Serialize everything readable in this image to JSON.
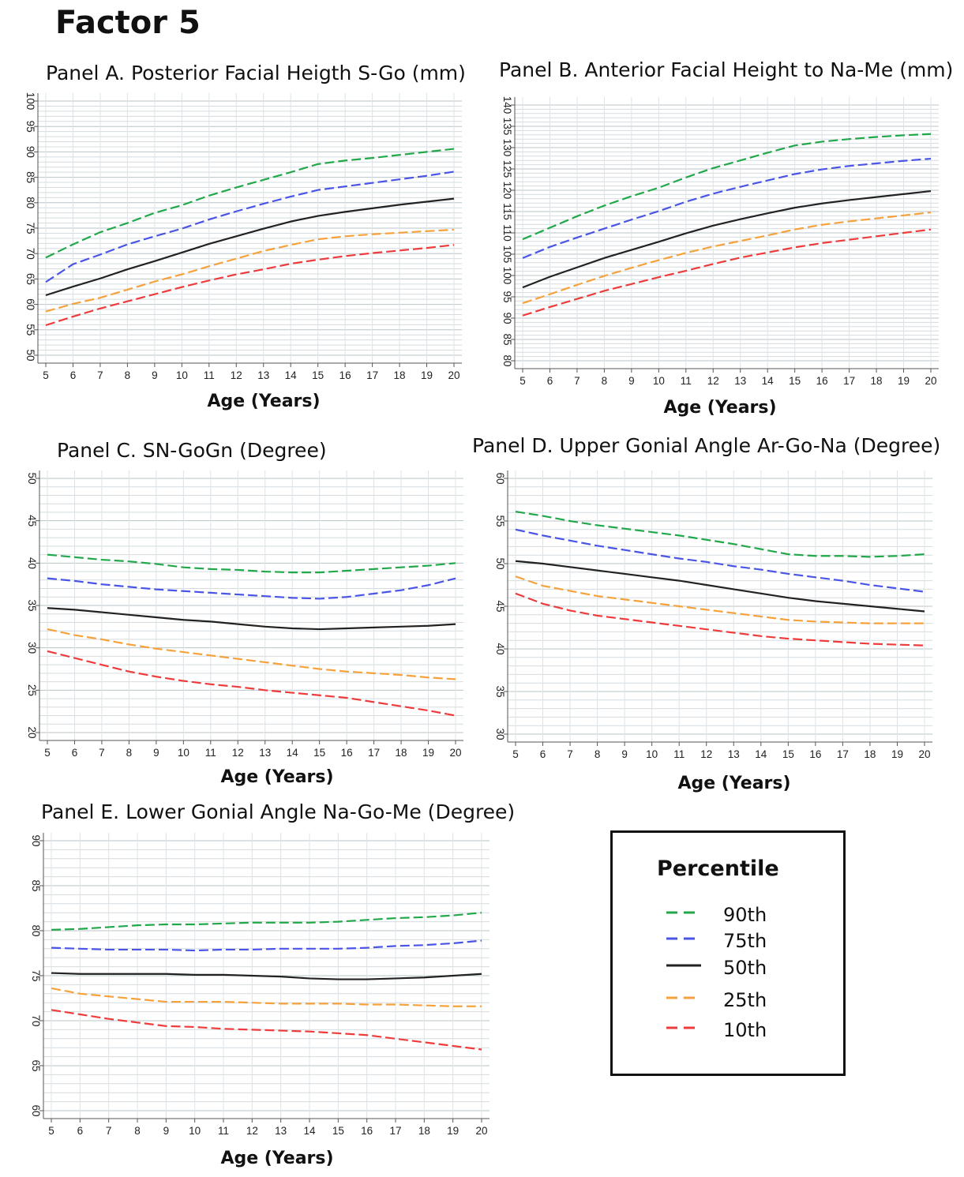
{
  "figure_title": "Factor 5",
  "legend": {
    "title": "Percentile",
    "items": [
      {
        "label": "90th",
        "color": "#22a84a",
        "dash": true
      },
      {
        "label": "75th",
        "color": "#4a55e6",
        "dash": true
      },
      {
        "label": "50th",
        "color": "#222222",
        "dash": false
      },
      {
        "label": "25th",
        "color": "#f5a23c",
        "dash": true
      },
      {
        "label": "10th",
        "color": "#ee3b3b",
        "dash": true
      }
    ]
  },
  "chart_data": [
    {
      "id": "A",
      "type": "line",
      "title": "Panel A. Posterior Facial Heigth S-Go (mm)",
      "xlabel": "Age (Years)",
      "ylabel": "",
      "x": [
        5,
        6,
        7,
        8,
        9,
        10,
        11,
        12,
        13,
        14,
        15,
        16,
        17,
        18,
        19,
        20
      ],
      "xlim": [
        5,
        20
      ],
      "ylim": [
        50,
        100
      ],
      "ytick_step": 5,
      "grid": true,
      "series": [
        {
          "color": "#22a84a",
          "values": [
            69.2,
            71.8,
            74.2,
            76.0,
            78.0,
            79.5,
            81.4,
            83.0,
            84.5,
            86.0,
            87.6,
            88.3,
            88.8,
            89.4,
            90.0,
            90.6
          ]
        },
        {
          "color": "#4a55e6",
          "values": [
            64.4,
            67.9,
            69.8,
            71.8,
            73.4,
            74.9,
            76.7,
            78.3,
            79.8,
            81.2,
            82.5,
            83.2,
            83.9,
            84.6,
            85.3,
            86.1
          ]
        },
        {
          "color": "#222222",
          "values": [
            61.8,
            63.5,
            65.1,
            66.9,
            68.5,
            70.2,
            71.9,
            73.4,
            74.9,
            76.3,
            77.4,
            78.2,
            78.9,
            79.6,
            80.2,
            80.8
          ]
        },
        {
          "color": "#f5a23c",
          "values": [
            58.6,
            60.1,
            61.3,
            62.9,
            64.5,
            65.9,
            67.5,
            69.0,
            70.5,
            71.7,
            72.8,
            73.4,
            73.8,
            74.1,
            74.4,
            74.7
          ]
        },
        {
          "color": "#ee3b3b",
          "values": [
            55.9,
            57.6,
            59.2,
            60.6,
            62.0,
            63.4,
            64.7,
            65.9,
            66.9,
            68.0,
            68.8,
            69.5,
            70.1,
            70.6,
            71.1,
            71.7
          ]
        }
      ]
    },
    {
      "id": "B",
      "type": "line",
      "title": "Panel B. Anterior Facial Height to Na-Me (mm)",
      "xlabel": "Age (Years)",
      "ylabel": "",
      "x": [
        5,
        6,
        7,
        8,
        9,
        10,
        11,
        12,
        13,
        14,
        15,
        16,
        17,
        18,
        19,
        20
      ],
      "xlim": [
        5,
        20
      ],
      "ylim": [
        80,
        140
      ],
      "ytick_step": 5,
      "grid": true,
      "series": [
        {
          "color": "#22a84a",
          "values": [
            108.5,
            111.2,
            113.9,
            116.4,
            118.6,
            120.6,
            123.0,
            125.2,
            127.0,
            128.8,
            130.5,
            131.4,
            132.0,
            132.5,
            132.9,
            133.2
          ]
        },
        {
          "color": "#4a55e6",
          "values": [
            104.1,
            106.7,
            108.9,
            111.0,
            113.1,
            115.1,
            117.3,
            119.2,
            120.8,
            122.3,
            123.8,
            124.9,
            125.7,
            126.3,
            126.9,
            127.4
          ]
        },
        {
          "color": "#222222",
          "values": [
            97.2,
            99.7,
            101.9,
            104.1,
            106.0,
            107.9,
            109.9,
            111.7,
            113.2,
            114.6,
            115.9,
            116.9,
            117.7,
            118.4,
            119.1,
            119.8
          ]
        },
        {
          "color": "#f5a23c",
          "values": [
            93.5,
            95.6,
            97.8,
            99.9,
            101.8,
            103.6,
            105.3,
            106.8,
            108.1,
            109.4,
            110.8,
            111.9,
            112.7,
            113.4,
            114.1,
            114.8
          ]
        },
        {
          "color": "#ee3b3b",
          "values": [
            90.6,
            92.6,
            94.5,
            96.4,
            98.0,
            99.6,
            101.1,
            102.7,
            104.2,
            105.4,
            106.6,
            107.6,
            108.4,
            109.2,
            110.0,
            110.8
          ]
        }
      ]
    },
    {
      "id": "C",
      "type": "line",
      "title": "Panel C. SN-GoGn (Degree)",
      "xlabel": "Age (Years)",
      "ylabel": "",
      "x": [
        5,
        6,
        7,
        8,
        9,
        10,
        11,
        12,
        13,
        14,
        15,
        16,
        17,
        18,
        19,
        20
      ],
      "xlim": [
        5,
        20
      ],
      "ylim": [
        20,
        50
      ],
      "ytick_step": 5,
      "grid": true,
      "series": [
        {
          "color": "#22a84a",
          "values": [
            41.0,
            40.7,
            40.4,
            40.2,
            39.9,
            39.5,
            39.3,
            39.2,
            39.0,
            38.9,
            38.9,
            39.1,
            39.3,
            39.5,
            39.7,
            40.0
          ]
        },
        {
          "color": "#4a55e6",
          "values": [
            38.2,
            37.9,
            37.5,
            37.2,
            36.9,
            36.7,
            36.5,
            36.3,
            36.1,
            35.9,
            35.8,
            36.0,
            36.4,
            36.8,
            37.4,
            38.2
          ]
        },
        {
          "color": "#222222",
          "values": [
            34.7,
            34.5,
            34.2,
            33.9,
            33.6,
            33.3,
            33.1,
            32.8,
            32.5,
            32.3,
            32.2,
            32.3,
            32.4,
            32.5,
            32.6,
            32.8
          ]
        },
        {
          "color": "#f5a23c",
          "values": [
            32.2,
            31.5,
            31.0,
            30.4,
            29.9,
            29.5,
            29.1,
            28.7,
            28.3,
            27.9,
            27.5,
            27.2,
            27.0,
            26.8,
            26.5,
            26.3
          ]
        },
        {
          "color": "#ee3b3b",
          "values": [
            29.6,
            28.8,
            28.0,
            27.2,
            26.6,
            26.1,
            25.7,
            25.4,
            25.0,
            24.7,
            24.4,
            24.1,
            23.6,
            23.1,
            22.6,
            22.0
          ]
        }
      ]
    },
    {
      "id": "D",
      "type": "line",
      "title": "Panel D. Upper Gonial Angle Ar-Go-Na (Degree)",
      "xlabel": "Age (Years)",
      "ylabel": "",
      "x": [
        5,
        6,
        7,
        8,
        9,
        10,
        11,
        12,
        13,
        14,
        15,
        16,
        17,
        18,
        19,
        20
      ],
      "xlim": [
        5,
        20
      ],
      "ylim": [
        30,
        60
      ],
      "ytick_step": 5,
      "grid": true,
      "series": [
        {
          "color": "#22a84a",
          "values": [
            56.1,
            55.6,
            55.0,
            54.5,
            54.1,
            53.7,
            53.3,
            52.8,
            52.3,
            51.7,
            51.1,
            50.9,
            50.9,
            50.8,
            50.9,
            51.1
          ]
        },
        {
          "color": "#4a55e6",
          "values": [
            54.0,
            53.3,
            52.7,
            52.1,
            51.6,
            51.1,
            50.6,
            50.2,
            49.7,
            49.3,
            48.8,
            48.4,
            48.0,
            47.5,
            47.1,
            46.7
          ]
        },
        {
          "color": "#222222",
          "values": [
            50.3,
            50.0,
            49.6,
            49.2,
            48.8,
            48.4,
            48.0,
            47.5,
            47.0,
            46.5,
            46.0,
            45.6,
            45.3,
            45.0,
            44.7,
            44.4
          ]
        },
        {
          "color": "#f5a23c",
          "values": [
            48.5,
            47.4,
            46.8,
            46.2,
            45.8,
            45.4,
            45.0,
            44.6,
            44.2,
            43.8,
            43.4,
            43.2,
            43.1,
            43.0,
            43.0,
            43.0
          ]
        },
        {
          "color": "#ee3b3b",
          "values": [
            46.5,
            45.3,
            44.5,
            43.9,
            43.5,
            43.1,
            42.7,
            42.3,
            41.9,
            41.5,
            41.2,
            41.0,
            40.8,
            40.6,
            40.5,
            40.4
          ]
        }
      ]
    },
    {
      "id": "E",
      "type": "line",
      "title": "Panel E. Lower Gonial Angle Na-Go-Me (Degree)",
      "xlabel": "Age (Years)",
      "ylabel": "",
      "x": [
        5,
        6,
        7,
        8,
        9,
        10,
        11,
        12,
        13,
        14,
        15,
        16,
        17,
        18,
        19,
        20
      ],
      "xlim": [
        5,
        20
      ],
      "ylim": [
        60,
        90
      ],
      "ytick_step": 5,
      "grid": true,
      "series": [
        {
          "color": "#22a84a",
          "values": [
            80.1,
            80.2,
            80.4,
            80.6,
            80.7,
            80.7,
            80.8,
            80.9,
            80.9,
            80.9,
            81.0,
            81.2,
            81.4,
            81.5,
            81.7,
            82.0
          ]
        },
        {
          "color": "#4a55e6",
          "values": [
            78.1,
            78.0,
            77.9,
            77.9,
            77.9,
            77.8,
            77.9,
            77.9,
            78.0,
            78.0,
            78.0,
            78.1,
            78.3,
            78.4,
            78.6,
            78.9
          ]
        },
        {
          "color": "#222222",
          "values": [
            75.3,
            75.2,
            75.2,
            75.2,
            75.2,
            75.1,
            75.1,
            75.0,
            74.9,
            74.7,
            74.6,
            74.6,
            74.7,
            74.8,
            75.0,
            75.2
          ]
        },
        {
          "color": "#f5a23c",
          "values": [
            73.6,
            73.0,
            72.7,
            72.4,
            72.1,
            72.1,
            72.1,
            72.0,
            71.9,
            71.9,
            71.9,
            71.8,
            71.8,
            71.7,
            71.6,
            71.6
          ]
        },
        {
          "color": "#ee3b3b",
          "values": [
            71.2,
            70.7,
            70.2,
            69.8,
            69.4,
            69.3,
            69.1,
            69.0,
            68.9,
            68.8,
            68.6,
            68.4,
            68.0,
            67.6,
            67.2,
            66.8
          ]
        }
      ]
    }
  ]
}
